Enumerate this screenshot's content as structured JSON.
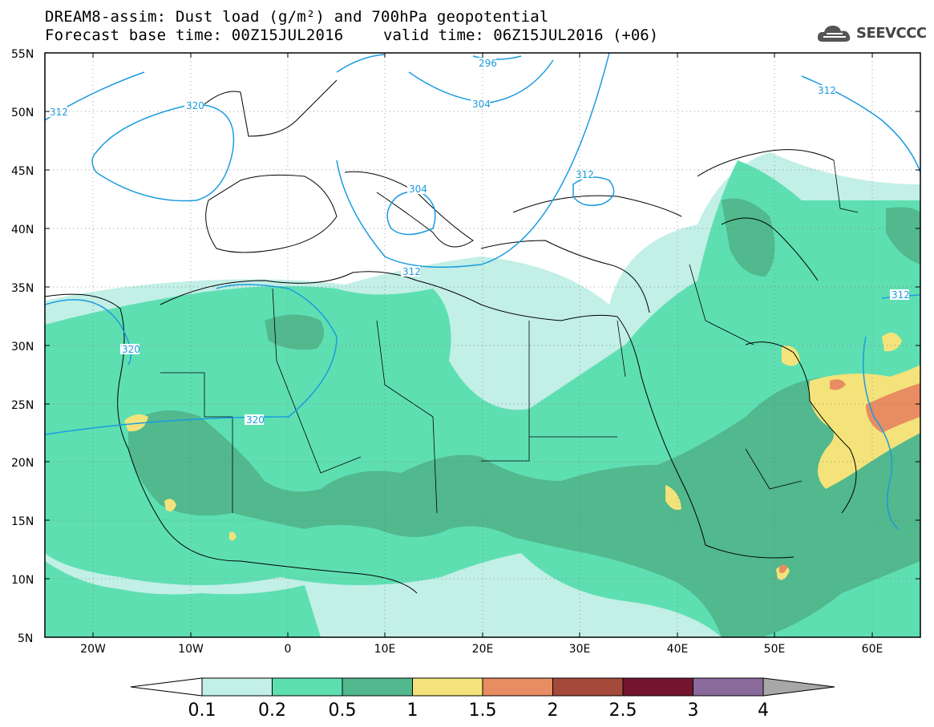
{
  "header": {
    "title_line1": "DREAM8-assim: Dust load (g/m²) and 700hPa geopotential",
    "title_line2": "Forecast base time: 00Z15JUL2016",
    "valid_time": "valid time: 06Z15JUL2016 (+06)"
  },
  "logo": {
    "text": "SEEVCCC",
    "icon": "cloud-icon"
  },
  "axes": {
    "lat_labels": [
      "55N",
      "50N",
      "45N",
      "40N",
      "35N",
      "30N",
      "25N",
      "20N",
      "15N",
      "10N",
      "5N"
    ],
    "lon_labels": [
      "20W",
      "10W",
      "0",
      "10E",
      "20E",
      "30E",
      "40E",
      "50E",
      "60E"
    ]
  },
  "contours": {
    "color": "#1a9be0",
    "labels": [
      "312",
      "320",
      "296",
      "304",
      "304",
      "312",
      "312",
      "320",
      "312",
      "320",
      "312"
    ]
  },
  "colorbar": {
    "colors": [
      "#c2efe6",
      "#5edfb2",
      "#52b88e",
      "#f3e37a",
      "#e88c62",
      "#a54a3a",
      "#74152e",
      "#8a6a9a"
    ],
    "ticks": [
      "0.1",
      "0.2",
      "0.5",
      "1",
      "1.5",
      "2",
      "2.5",
      "3",
      "4"
    ],
    "lower_arrow_color": "#ffffff",
    "upper_arrow_color": "#a8a8a8"
  }
}
